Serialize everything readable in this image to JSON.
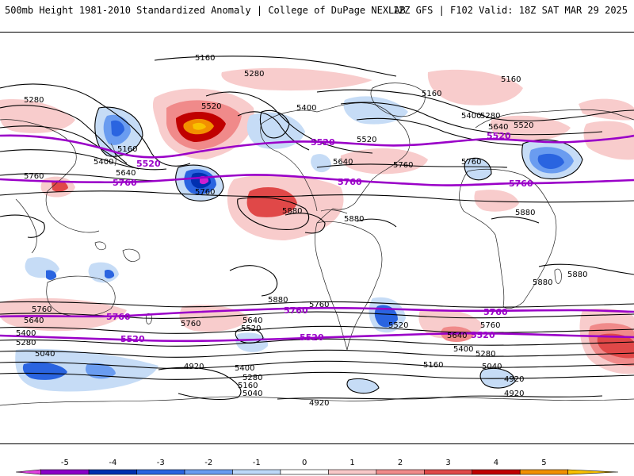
{
  "header": {
    "left": "500mb Height 1981-2010 Standardized Anomaly | College of DuPage NEXLAB",
    "right": "12Z GFS | F102 Valid: 18Z SAT MAR 29 2025"
  },
  "contour_labels": {
    "c5160": "5160",
    "c5280": "5280",
    "c5400": "5400",
    "c5520": "5520",
    "c5640": "5640",
    "c5760": "5760",
    "c5880": "5880",
    "c5040": "5040",
    "c4920": "4920"
  },
  "colorbar": {
    "ticks": [
      "-5",
      "-4",
      "-3",
      "-2",
      "-1",
      "0",
      "1",
      "2",
      "3",
      "4",
      "5"
    ],
    "colors": [
      "#e040e0",
      "#8a00c8",
      "#0030b0",
      "#2a64e0",
      "#6a9cf0",
      "#bcd8f8",
      "#ffffff",
      "#f8c8c8",
      "#f08a8a",
      "#e04848",
      "#c00000",
      "#f09000",
      "#f8c000"
    ]
  },
  "anomaly_colors": {
    "pos1": "#f8cccc",
    "pos2": "#f08a8a",
    "pos3": "#d83838",
    "pos4": "#b80000",
    "pos5": "#f29000",
    "pos6": "#f8c200",
    "neg1": "#c6dcf6",
    "neg2": "#6a9cf0",
    "neg3": "#2a64e0",
    "neg4": "#0030b0",
    "neg5": "#d020d0"
  }
}
